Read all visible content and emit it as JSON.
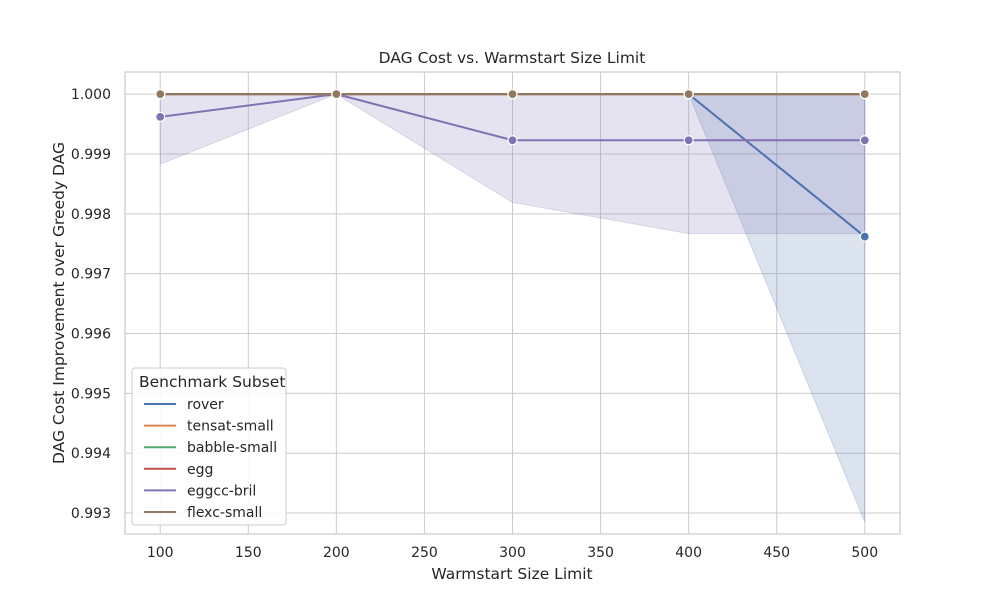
{
  "chart_data": {
    "type": "line",
    "title": "DAG Cost vs. Warmstart Size Limit",
    "xlabel": "Warmstart Size Limit",
    "ylabel": "DAG Cost Improvement over Greedy DAG",
    "xlim": [
      80,
      520
    ],
    "ylim": [
      0.99265,
      1.00037
    ],
    "x_ticks": [
      100,
      150,
      200,
      250,
      300,
      350,
      400,
      450,
      500
    ],
    "y_ticks": [
      0.993,
      0.994,
      0.995,
      0.996,
      0.997,
      0.998,
      0.999,
      1.0
    ],
    "grid": true,
    "legend_title": "Benchmark Subset",
    "legend_position": "lower-left",
    "x": [
      100,
      200,
      300,
      400,
      500
    ],
    "series": [
      {
        "name": "rover",
        "color": "#4c72b0",
        "values": [
          1.0,
          1.0,
          1.0,
          1.0,
          0.99762
        ],
        "ci_lower": [
          1.0,
          1.0,
          1.0,
          1.0,
          0.99285
        ],
        "ci_upper": [
          1.0,
          1.0,
          1.0,
          1.0,
          1.0
        ]
      },
      {
        "name": "tensat-small",
        "color": "#dd8452",
        "values": [
          1.0,
          1.0,
          1.0,
          1.0,
          1.0
        ]
      },
      {
        "name": "babble-small",
        "color": "#55a868",
        "values": [
          1.0,
          1.0,
          1.0,
          1.0,
          1.0
        ]
      },
      {
        "name": "egg",
        "color": "#c44e52",
        "values": [
          1.0,
          1.0,
          1.0,
          1.0,
          1.0
        ]
      },
      {
        "name": "eggcc-bril",
        "color": "#8172b3",
        "values": [
          0.99962,
          1.0,
          0.99923,
          0.99923,
          0.99923
        ],
        "ci_lower": [
          0.99883,
          1.0,
          0.99819,
          0.99767,
          0.99767
        ],
        "ci_upper": [
          1.0,
          1.0,
          1.0,
          1.0,
          1.0
        ]
      },
      {
        "name": "flexc-small",
        "color": "#937860",
        "values": [
          1.0,
          1.0,
          1.0,
          1.0,
          1.0
        ]
      }
    ]
  }
}
